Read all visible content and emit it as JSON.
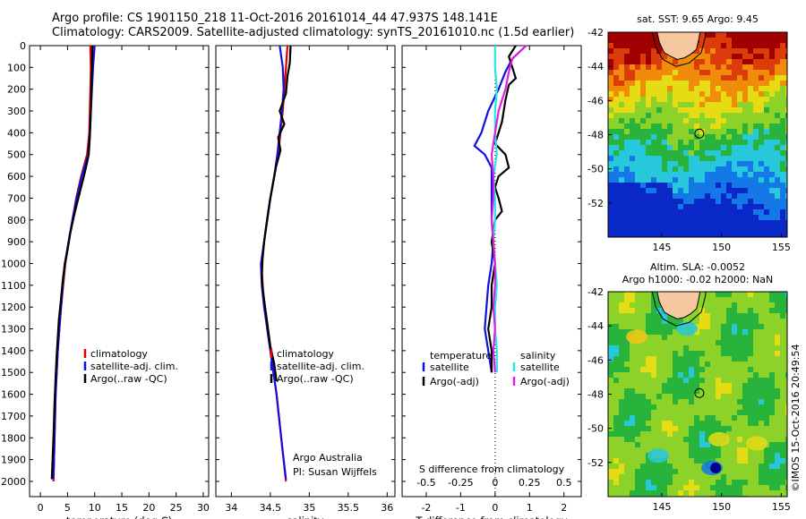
{
  "header": {
    "line1": "Argo profile: CS 1901150_218 11-Oct-2016 20161014_44 47.937S 148.141E",
    "line2": "Climatology: CARS2009. Satellite-adjusted climatology: synTS_20161010.nc (1.5d earlier)"
  },
  "colors": {
    "climatology": "#e00000",
    "satellite": "#1010e0",
    "argo": "#000000",
    "sal_satellite": "#22e8e8",
    "sal_argo": "#e020e0",
    "land": "#f7c8a0"
  },
  "chart_data": [
    {
      "type": "line",
      "panel": "temperature",
      "xlabel": "temperature (deg C)",
      "xlim": [
        -2,
        31
      ],
      "xticks": [
        0,
        5,
        10,
        15,
        20,
        25,
        30
      ],
      "ylim": [
        2070,
        0
      ],
      "yticks": [
        0,
        100,
        200,
        300,
        400,
        500,
        600,
        700,
        800,
        900,
        1000,
        1100,
        1200,
        1300,
        1400,
        1500,
        1600,
        1700,
        1800,
        1900,
        2000
      ],
      "legend": [
        "climatology",
        "satellite-adj. clim.",
        "Argo(..raw -QC)"
      ],
      "series": [
        {
          "name": "climatology",
          "color": "#e00000",
          "points": [
            [
              9.2,
              0
            ],
            [
              9.3,
              100
            ],
            [
              9.2,
              200
            ],
            [
              9.0,
              400
            ],
            [
              8.6,
              500
            ],
            [
              7.5,
              600
            ],
            [
              6.6,
              700
            ],
            [
              5.9,
              800
            ],
            [
              5.2,
              900
            ],
            [
              4.6,
              1000
            ],
            [
              4.2,
              1100
            ],
            [
              3.8,
              1200
            ],
            [
              3.5,
              1300
            ],
            [
              3.2,
              1400
            ],
            [
              3.0,
              1500
            ],
            [
              2.8,
              1600
            ],
            [
              2.7,
              1700
            ],
            [
              2.6,
              1800
            ],
            [
              2.5,
              1900
            ],
            [
              2.4,
              2000
            ]
          ]
        },
        {
          "name": "satellite-adj. clim.",
          "color": "#1010e0",
          "points": [
            [
              10.0,
              0
            ],
            [
              9.7,
              100
            ],
            [
              9.5,
              200
            ],
            [
              9.3,
              300
            ],
            [
              9.1,
              400
            ],
            [
              8.8,
              500
            ],
            [
              7.6,
              600
            ],
            [
              6.7,
              700
            ],
            [
              5.9,
              800
            ],
            [
              5.2,
              900
            ],
            [
              4.5,
              1000
            ],
            [
              4.1,
              1100
            ],
            [
              3.8,
              1200
            ],
            [
              3.5,
              1300
            ],
            [
              3.2,
              1400
            ],
            [
              3.0,
              1500
            ],
            [
              2.8,
              1600
            ],
            [
              2.7,
              1700
            ],
            [
              2.6,
              1800
            ],
            [
              2.5,
              1900
            ],
            [
              2.4,
              1990
            ]
          ]
        },
        {
          "name": "Argo(..raw -QC)",
          "color": "#000000",
          "points": [
            [
              9.6,
              0
            ],
            [
              9.5,
              80
            ],
            [
              9.4,
              180
            ],
            [
              9.3,
              300
            ],
            [
              9.1,
              420
            ],
            [
              8.9,
              500
            ],
            [
              8.4,
              560
            ],
            [
              7.8,
              620
            ],
            [
              7.0,
              700
            ],
            [
              6.2,
              780
            ],
            [
              5.5,
              860
            ],
            [
              5.0,
              940
            ],
            [
              4.5,
              1000
            ],
            [
              4.1,
              1080
            ],
            [
              3.8,
              1160
            ],
            [
              3.4,
              1260
            ],
            [
              3.2,
              1340
            ],
            [
              3.0,
              1420
            ],
            [
              2.8,
              1520
            ],
            [
              2.6,
              1640
            ],
            [
              2.4,
              1800
            ],
            [
              2.2,
              1920
            ],
            [
              2.1,
              1990
            ]
          ]
        }
      ]
    },
    {
      "type": "line",
      "panel": "salinity",
      "xlabel": "salinity",
      "xlim": [
        33.8,
        36.1
      ],
      "xticks": [
        34,
        34.5,
        35,
        35.5,
        36
      ],
      "ylim": [
        2070,
        0
      ],
      "legend": [
        "climatology",
        "satellite-adj. clim.",
        "Argo(..raw -QC)"
      ],
      "annotation": [
        "Argo Australia",
        "PI: Susan Wijffels"
      ],
      "series": [
        {
          "name": "climatology",
          "color": "#e00000",
          "points": [
            [
              34.72,
              0
            ],
            [
              34.7,
              100
            ],
            [
              34.68,
              200
            ],
            [
              34.66,
              300
            ],
            [
              34.63,
              400
            ],
            [
              34.6,
              500
            ],
            [
              34.55,
              600
            ],
            [
              34.5,
              700
            ],
            [
              34.46,
              800
            ],
            [
              34.42,
              900
            ],
            [
              34.39,
              1000
            ],
            [
              34.4,
              1100
            ],
            [
              34.43,
              1200
            ],
            [
              34.46,
              1300
            ],
            [
              34.5,
              1400
            ],
            [
              34.54,
              1500
            ],
            [
              34.58,
              1600
            ],
            [
              34.61,
              1700
            ],
            [
              34.64,
              1800
            ],
            [
              34.67,
              1900
            ],
            [
              34.7,
              2000
            ]
          ]
        },
        {
          "name": "satellite-adj. clim.",
          "color": "#1010e0",
          "points": [
            [
              34.62,
              0
            ],
            [
              34.66,
              100
            ],
            [
              34.67,
              200
            ],
            [
              34.65,
              300
            ],
            [
              34.62,
              400
            ],
            [
              34.59,
              500
            ],
            [
              34.55,
              600
            ],
            [
              34.5,
              700
            ],
            [
              34.46,
              800
            ],
            [
              34.42,
              900
            ],
            [
              34.38,
              1000
            ],
            [
              34.39,
              1100
            ],
            [
              34.42,
              1200
            ],
            [
              34.46,
              1300
            ],
            [
              34.5,
              1400
            ],
            [
              34.54,
              1500
            ],
            [
              34.58,
              1600
            ],
            [
              34.61,
              1700
            ],
            [
              34.64,
              1800
            ],
            [
              34.67,
              1900
            ],
            [
              34.7,
              1990
            ]
          ]
        },
        {
          "name": "Argo(..raw -QC)",
          "color": "#000000",
          "points": [
            [
              34.76,
              0
            ],
            [
              34.75,
              80
            ],
            [
              34.72,
              140
            ],
            [
              34.7,
              220
            ],
            [
              34.62,
              300
            ],
            [
              34.68,
              360
            ],
            [
              34.6,
              420
            ],
            [
              34.63,
              480
            ],
            [
              34.57,
              560
            ],
            [
              34.53,
              640
            ],
            [
              34.49,
              720
            ],
            [
              34.45,
              820
            ],
            [
              34.42,
              900
            ],
            [
              34.4,
              980
            ],
            [
              34.39,
              1060
            ],
            [
              34.41,
              1140
            ],
            [
              34.44,
              1220
            ],
            [
              34.47,
              1300
            ],
            [
              34.5,
              1380
            ],
            [
              34.55,
              1460
            ],
            [
              34.58,
              1540
            ]
          ]
        }
      ]
    },
    {
      "type": "line",
      "panel": "difference",
      "xlabel": "T difference from climatology",
      "xlabel2": "S difference from climatology",
      "xlim": [
        -2.7,
        2.5
      ],
      "xticks": [
        -2,
        -1,
        0,
        1,
        2
      ],
      "xticks2_labels": [
        "-0.5",
        "-0.25",
        "0",
        "0.25",
        "0.5"
      ],
      "xticks2_pos": [
        -2,
        -1,
        0,
        1,
        2
      ],
      "ylim": [
        2070,
        0
      ],
      "legend_temperature_title": "temperature",
      "legend_salinity_title": "salinity",
      "legend": [
        "satellite",
        "Argo(-adj)",
        "satellite",
        "Argo(-adj)"
      ],
      "series": [
        {
          "name": "temperature satellite",
          "color": "#1010e0",
          "points": [
            [
              0.9,
              0
            ],
            [
              0.5,
              60
            ],
            [
              0.3,
              120
            ],
            [
              0.1,
              200
            ],
            [
              -0.2,
              300
            ],
            [
              -0.4,
              400
            ],
            [
              -0.6,
              460
            ],
            [
              -0.3,
              500
            ],
            [
              -0.1,
              560
            ],
            [
              -0.1,
              700
            ],
            [
              -0.1,
              800
            ],
            [
              -0.05,
              900
            ],
            [
              -0.1,
              1000
            ],
            [
              -0.2,
              1100
            ],
            [
              -0.25,
              1200
            ],
            [
              -0.3,
              1300
            ],
            [
              -0.2,
              1400
            ],
            [
              -0.1,
              1500
            ]
          ]
        },
        {
          "name": "temperature Argo(-adj)",
          "color": "#000000",
          "points": [
            [
              0.6,
              0
            ],
            [
              0.4,
              50
            ],
            [
              0.5,
              100
            ],
            [
              0.6,
              150
            ],
            [
              0.4,
              180
            ],
            [
              0.3,
              250
            ],
            [
              0.2,
              350
            ],
            [
              0.1,
              400
            ],
            [
              0.0,
              450
            ],
            [
              0.3,
              500
            ],
            [
              0.4,
              560
            ],
            [
              0.1,
              600
            ],
            [
              0.0,
              650
            ],
            [
              0.1,
              700
            ],
            [
              0.2,
              760
            ],
            [
              0.0,
              800
            ],
            [
              -0.1,
              900
            ],
            [
              0.0,
              1000
            ],
            [
              -0.1,
              1100
            ],
            [
              -0.1,
              1200
            ],
            [
              -0.2,
              1300
            ],
            [
              -0.1,
              1400
            ],
            [
              -0.1,
              1500
            ]
          ]
        },
        {
          "name": "salinity satellite",
          "color": "#22e8e8",
          "points": [
            [
              0.0,
              0
            ],
            [
              0.0,
              100
            ],
            [
              0.05,
              200
            ],
            [
              0.0,
              300
            ],
            [
              0.0,
              400
            ],
            [
              0.05,
              500
            ],
            [
              -0.05,
              600
            ],
            [
              0.0,
              700
            ],
            [
              0.0,
              800
            ],
            [
              -0.05,
              900
            ],
            [
              0.0,
              1000
            ],
            [
              0.05,
              1100
            ],
            [
              0.0,
              1200
            ],
            [
              0.0,
              1300
            ],
            [
              0.05,
              1400
            ],
            [
              0.05,
              1500
            ]
          ]
        },
        {
          "name": "salinity Argo(-adj)",
          "color": "#e020e0",
          "points": [
            [
              0.9,
              0
            ],
            [
              0.5,
              60
            ],
            [
              0.4,
              120
            ],
            [
              0.3,
              200
            ],
            [
              0.1,
              300
            ],
            [
              0.0,
              400
            ],
            [
              -0.1,
              500
            ],
            [
              -0.05,
              600
            ],
            [
              -0.05,
              700
            ],
            [
              -0.1,
              800
            ],
            [
              -0.05,
              900
            ],
            [
              0.0,
              1000
            ],
            [
              0.0,
              1100
            ],
            [
              -0.05,
              1200
            ],
            [
              0.0,
              1300
            ],
            [
              -0.05,
              1400
            ],
            [
              0.0,
              1500
            ]
          ]
        }
      ]
    }
  ],
  "maps": {
    "sst": {
      "title": "sat. SST: 9.65 Argo: 9.45",
      "xticks": [
        145,
        150,
        155
      ],
      "yticks": [
        -42,
        -44,
        -46,
        -48,
        -50,
        -52
      ],
      "xlim": [
        140.5,
        155.5
      ],
      "ylim": [
        -54,
        -42
      ],
      "float": [
        148.141,
        -47.937
      ]
    },
    "sla": {
      "title1": "Altim. SLA: -0.0052",
      "title2": "Argo h1000: -0.02 h2000: NaN",
      "xticks": [
        145,
        150,
        155
      ],
      "yticks": [
        -42,
        -44,
        -46,
        -48,
        -50,
        -52
      ],
      "xlim": [
        140.5,
        155.5
      ],
      "ylim": [
        -54,
        -42
      ],
      "float": [
        148.141,
        -47.937
      ]
    },
    "watermark": "©IMOS 15-Oct-2016 20:49:54"
  }
}
